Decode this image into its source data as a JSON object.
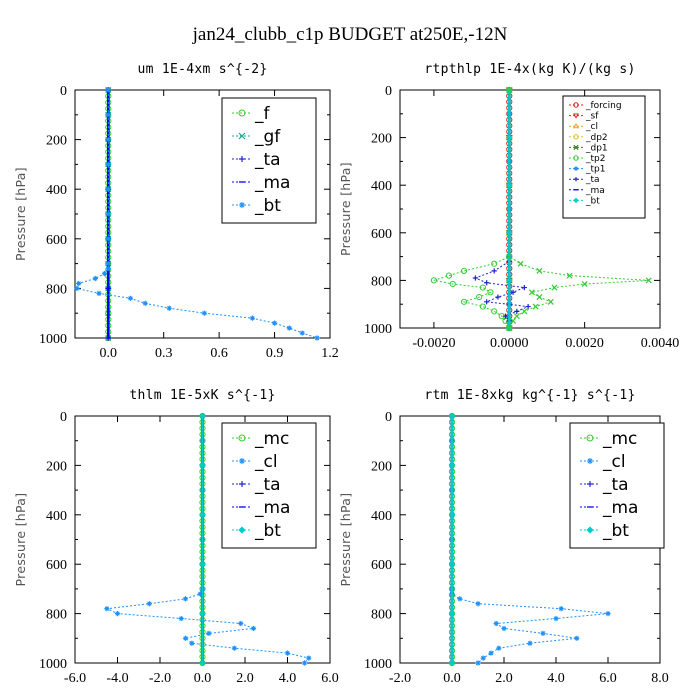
{
  "title": "jan24_clubb_c1p  BUDGET at250E,-12N",
  "chart_data": [
    {
      "type": "line",
      "title": "um   1E-4xm s^{-2}",
      "ylabel": "Pressure [hPa]",
      "xlim": [
        -0.18,
        1.2
      ],
      "ylim": [
        1000,
        0
      ],
      "xticks": [
        0.0,
        0.3,
        0.6,
        0.9,
        1.2
      ],
      "xticklabels": [
        "0.0",
        "0.3",
        "0.6",
        "0.9",
        "1.2"
      ],
      "yticks": [
        0,
        200,
        400,
        600,
        800,
        1000
      ],
      "legend_position": "top-right",
      "series": [
        {
          "name": "_f",
          "color": "#33cc33",
          "marker": "circle",
          "p": [
            0,
            25,
            50,
            75,
            100,
            125,
            150,
            175,
            200,
            225,
            250,
            275,
            300,
            325,
            350,
            375,
            400,
            425,
            450,
            475,
            500,
            525,
            550,
            575,
            600,
            625,
            650,
            675,
            700,
            725,
            750,
            775,
            800,
            825,
            850,
            875,
            900,
            925,
            950,
            975,
            1000
          ],
          "x": [
            0,
            0,
            0,
            0,
            0,
            0,
            0,
            0,
            0,
            0,
            0,
            0,
            0,
            0,
            0,
            0,
            0,
            0,
            0,
            0,
            0,
            0,
            0,
            0,
            0,
            0,
            0,
            0,
            0,
            0,
            0,
            0,
            0,
            0,
            0,
            0,
            0,
            0,
            0,
            0,
            0
          ]
        },
        {
          "name": "_gf",
          "color": "#17a589",
          "marker": "x",
          "p": [
            0,
            100,
            200,
            300,
            400,
            500,
            600,
            700,
            800,
            900,
            1000
          ],
          "x": [
            0,
            0,
            0,
            0,
            0,
            0,
            0,
            0,
            0,
            0,
            0
          ]
        },
        {
          "name": "_ta",
          "color": "#2222cc",
          "marker": "plus",
          "p": [
            0,
            200,
            400,
            600,
            800,
            1000
          ],
          "x": [
            0,
            0,
            0,
            0,
            0,
            0
          ]
        },
        {
          "name": "_ma",
          "color": "#0000ff",
          "marker": "dash",
          "p": [
            0,
            200,
            400,
            600,
            800,
            1000
          ],
          "x": [
            0,
            0,
            0,
            0,
            0,
            0
          ]
        },
        {
          "name": "_bt",
          "color": "#1e90ff",
          "marker": "star",
          "p": [
            0,
            100,
            200,
            300,
            400,
            500,
            600,
            700,
            720,
            740,
            760,
            780,
            800,
            820,
            840,
            860,
            880,
            900,
            920,
            940,
            960,
            980,
            1000
          ],
          "x": [
            0,
            0,
            0,
            0,
            0,
            0,
            0,
            0,
            0,
            -0.02,
            -0.07,
            -0.16,
            -0.17,
            -0.05,
            0.12,
            0.2,
            0.33,
            0.52,
            0.78,
            0.9,
            0.98,
            1.05,
            1.13
          ]
        }
      ]
    },
    {
      "type": "line",
      "title": "rtpthlp   1E-4x(kg K)/(kg s)",
      "ylabel": "Pressure [hPa]",
      "xlim": [
        -0.0029,
        0.004
      ],
      "ylim": [
        1000,
        0
      ],
      "xticks": [
        -0.002,
        0.0,
        0.002,
        0.004
      ],
      "xticklabels": [
        "-0.0020",
        "0.0000",
        "0.0020",
        "0.0040"
      ],
      "yticks": [
        0,
        200,
        400,
        600,
        800,
        1000
      ],
      "legend_position": "top-right",
      "series": [
        {
          "name": "_forcing",
          "color": "#e02020",
          "marker": "circle",
          "p": [
            0,
            25,
            50,
            75,
            100,
            125,
            150,
            175,
            200,
            225,
            250,
            275,
            300,
            325,
            350,
            375,
            400,
            425,
            450,
            475,
            500,
            525,
            550,
            575,
            600,
            625,
            650,
            675,
            700,
            725,
            750,
            775,
            800,
            825,
            850,
            875,
            900,
            925,
            950,
            975,
            1000
          ],
          "x": [
            0,
            0,
            0,
            0,
            0,
            0,
            0,
            0,
            0,
            0,
            0,
            0,
            0,
            0,
            0,
            0,
            0,
            0,
            0,
            0,
            0,
            0,
            0,
            0,
            0,
            0,
            0,
            0,
            0,
            0,
            0,
            0,
            0,
            0,
            0,
            0,
            0,
            0,
            0,
            0,
            0
          ]
        },
        {
          "name": "_sf",
          "color": "#e02020",
          "marker": "triangle-down",
          "p": [
            0,
            200,
            400,
            600,
            800,
            1000
          ],
          "x": [
            0,
            0,
            0,
            0,
            0,
            0
          ]
        },
        {
          "name": "_cl",
          "color": "#e8a317",
          "marker": "triangle-up",
          "p": [
            0,
            200,
            400,
            600,
            800,
            1000
          ],
          "x": [
            0,
            0,
            0,
            0,
            0,
            0
          ]
        },
        {
          "name": "_dp2",
          "color": "#e0c020",
          "marker": "circle",
          "p": [
            0,
            200,
            400,
            600,
            800,
            1000
          ],
          "x": [
            0,
            0,
            0,
            0,
            0,
            0
          ]
        },
        {
          "name": "_dp1",
          "color": "#228b22",
          "marker": "x",
          "p": [
            0,
            200,
            400,
            600,
            800,
            1000
          ],
          "x": [
            0,
            0,
            0,
            0,
            0,
            0
          ]
        },
        {
          "name": "_tp2",
          "color": "#33cc33",
          "marker": "circle",
          "p": [
            0,
            700,
            730,
            760,
            780,
            800,
            815,
            830,
            850,
            870,
            890,
            910,
            930,
            950,
            970,
            1000
          ],
          "x": [
            0,
            0,
            -0.0004,
            -0.0012,
            -0.0016,
            -0.002,
            -0.0015,
            -0.0007,
            -0.0005,
            -0.0008,
            -0.0012,
            -0.0007,
            -0.0004,
            -0.0002,
            -0.0001,
            0
          ]
        },
        {
          "name": "_tp1",
          "color": "#1e90ff",
          "marker": "star",
          "p": [
            0,
            100,
            200,
            300,
            400,
            500,
            600,
            700,
            800,
            900,
            1000
          ],
          "x": [
            0,
            0,
            0,
            0,
            0,
            0,
            0,
            0,
            0,
            0,
            0
          ]
        },
        {
          "name": "_ta",
          "color": "#2222cc",
          "marker": "plus",
          "p": [
            0,
            720,
            760,
            790,
            810,
            830,
            850,
            870,
            890,
            910,
            930,
            950,
            970,
            1000
          ],
          "x": [
            0,
            0,
            -0.0004,
            -0.0009,
            -0.0006,
            0.0004,
            0.0001,
            -0.0003,
            -0.0006,
            0.0005,
            0.0002,
            -0.0001,
            0,
            0
          ]
        },
        {
          "name": "_ma",
          "color": "#0000ff",
          "marker": "dash",
          "p": [
            0,
            200,
            400,
            600,
            800,
            1000
          ],
          "x": [
            0,
            0,
            0,
            0,
            0,
            0
          ]
        },
        {
          "name": "_bt",
          "color": "#00cccc",
          "marker": "diamond",
          "p": [
            0,
            200,
            400,
            600,
            800,
            1000
          ],
          "x": [
            0,
            0,
            0,
            0,
            0,
            0
          ]
        },
        {
          "name": "",
          "color": "#33cc33",
          "marker": "x",
          "p": [
            0,
            700,
            730,
            760,
            780,
            800,
            815,
            830,
            850,
            870,
            890,
            910,
            930,
            950,
            970,
            1000
          ],
          "x": [
            0,
            0,
            0.0003,
            0.0008,
            0.0016,
            0.0037,
            0.002,
            0.0012,
            0.0006,
            0.0008,
            0.0011,
            0.0007,
            0.0004,
            0.0002,
            0.0001,
            0
          ]
        }
      ]
    },
    {
      "type": "line",
      "title": "thlm   1E-5xK s^{-1}",
      "ylabel": "Pressure [hPa]",
      "xlim": [
        -6.0,
        6.0
      ],
      "ylim": [
        1000,
        0
      ],
      "xticks": [
        -6.0,
        -4.0,
        -2.0,
        0.0,
        2.0,
        4.0,
        6.0
      ],
      "xticklabels": [
        "-6.0",
        "-4.0",
        "-2.0",
        "0.0",
        "2.0",
        "4.0",
        "6.0"
      ],
      "yticks": [
        0,
        200,
        400,
        600,
        800,
        1000
      ],
      "legend_position": "top-right",
      "series": [
        {
          "name": "_mc",
          "color": "#33cc33",
          "marker": "circle",
          "p": [
            0,
            25,
            50,
            75,
            100,
            125,
            150,
            175,
            200,
            225,
            250,
            275,
            300,
            325,
            350,
            375,
            400,
            425,
            450,
            475,
            500,
            525,
            550,
            575,
            600,
            625,
            650,
            675,
            700,
            725,
            750,
            775,
            800,
            825,
            850,
            875,
            900,
            925,
            950,
            975,
            1000
          ],
          "x": [
            0,
            0,
            0,
            0,
            0,
            0,
            0,
            0,
            0,
            0,
            0,
            0,
            0,
            0,
            0,
            0,
            0,
            0,
            0,
            0,
            0,
            0,
            0,
            0,
            0,
            0,
            0,
            0,
            0,
            0,
            0,
            0,
            0,
            0,
            0,
            0,
            0,
            0,
            0,
            0,
            0
          ]
        },
        {
          "name": "_cl",
          "color": "#1e90ff",
          "marker": "star",
          "p": [
            0,
            100,
            200,
            300,
            400,
            500,
            600,
            700,
            720,
            740,
            760,
            780,
            800,
            820,
            840,
            860,
            880,
            900,
            920,
            940,
            960,
            980,
            1000
          ],
          "x": [
            0,
            0,
            0,
            0,
            0,
            0,
            0,
            0,
            -0.1,
            -0.8,
            -2.5,
            -4.5,
            -4.0,
            -1.0,
            1.8,
            2.4,
            0.3,
            -0.8,
            -0.5,
            1.5,
            4.0,
            5.0,
            4.8
          ]
        },
        {
          "name": "_ta",
          "color": "#2222cc",
          "marker": "plus",
          "p": [
            0,
            200,
            400,
            600,
            800,
            1000
          ],
          "x": [
            0,
            0,
            0,
            0,
            0,
            0
          ]
        },
        {
          "name": "_ma",
          "color": "#0000ff",
          "marker": "dash",
          "p": [
            0,
            200,
            400,
            600,
            800,
            1000
          ],
          "x": [
            0,
            0,
            0,
            0,
            0,
            0
          ]
        },
        {
          "name": "_bt",
          "color": "#00cccc",
          "marker": "diamond",
          "p": [
            0,
            200,
            400,
            600,
            800,
            1000
          ],
          "x": [
            0,
            0,
            0,
            0,
            0,
            0
          ]
        }
      ]
    },
    {
      "type": "line",
      "title": "rtm   1E-8xkg kg^{-1} s^{-1}",
      "ylabel": "Pressure [hPa]",
      "xlim": [
        -2.0,
        8.0
      ],
      "ylim": [
        1000,
        0
      ],
      "xticks": [
        -2.0,
        0.0,
        2.0,
        4.0,
        6.0,
        8.0
      ],
      "xticklabels": [
        "-2.0",
        "0.0",
        "2.0",
        "4.0",
        "6.0",
        "8.0"
      ],
      "yticks": [
        0,
        200,
        400,
        600,
        800,
        1000
      ],
      "legend_position": "top-right",
      "series": [
        {
          "name": "_mc",
          "color": "#33cc33",
          "marker": "circle",
          "p": [
            0,
            25,
            50,
            75,
            100,
            125,
            150,
            175,
            200,
            225,
            250,
            275,
            300,
            325,
            350,
            375,
            400,
            425,
            450,
            475,
            500,
            525,
            550,
            575,
            600,
            625,
            650,
            675,
            700,
            725,
            750,
            775,
            800,
            825,
            850,
            875,
            900,
            925,
            950,
            975,
            1000
          ],
          "x": [
            0,
            0,
            0,
            0,
            0,
            0,
            0,
            0,
            0,
            0,
            0,
            0,
            0,
            0,
            0,
            0,
            0,
            0,
            0,
            0,
            0,
            0,
            0,
            0,
            0,
            0,
            0,
            0,
            0,
            0,
            0,
            0,
            0,
            0,
            0,
            0,
            0,
            0,
            0,
            0,
            0
          ]
        },
        {
          "name": "_cl",
          "color": "#1e90ff",
          "marker": "star",
          "p": [
            0,
            100,
            200,
            300,
            400,
            500,
            600,
            700,
            720,
            740,
            760,
            780,
            800,
            820,
            840,
            860,
            880,
            900,
            920,
            940,
            960,
            980,
            1000
          ],
          "x": [
            0,
            0,
            0,
            0,
            0,
            0,
            0,
            0,
            0,
            0.3,
            1.0,
            4.2,
            6.0,
            4.0,
            1.7,
            2.0,
            3.5,
            4.8,
            3.0,
            1.8,
            1.5,
            1.2,
            1.0
          ]
        },
        {
          "name": "_ta",
          "color": "#2222cc",
          "marker": "plus",
          "p": [
            0,
            200,
            400,
            600,
            800,
            1000
          ],
          "x": [
            0,
            0,
            0,
            0,
            0,
            0
          ]
        },
        {
          "name": "_ma",
          "color": "#0000ff",
          "marker": "dash",
          "p": [
            0,
            200,
            400,
            600,
            800,
            1000
          ],
          "x": [
            0,
            0,
            0,
            0,
            0,
            0
          ]
        },
        {
          "name": "_bt",
          "color": "#00cccc",
          "marker": "diamond",
          "p": [
            0,
            200,
            400,
            600,
            800,
            1000
          ],
          "x": [
            0,
            0,
            0,
            0,
            0,
            0
          ]
        }
      ]
    }
  ]
}
